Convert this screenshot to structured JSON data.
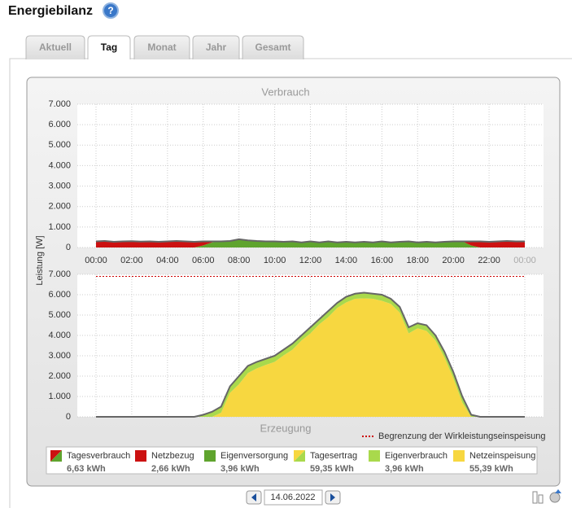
{
  "header": {
    "title": "Energiebilanz"
  },
  "tabs": [
    "Aktuell",
    "Tag",
    "Monat",
    "Jahr",
    "Gesamt"
  ],
  "active_tab": 1,
  "y_axis_label": "Leistung [W]",
  "chart_data": [
    {
      "type": "area",
      "title": "Verbrauch",
      "stacked": true,
      "grid": true,
      "x": [
        0,
        0.5,
        1,
        1.5,
        2,
        2.5,
        3,
        3.5,
        4,
        4.5,
        5,
        5.5,
        6,
        6.5,
        7,
        7.5,
        8,
        8.5,
        9,
        9.5,
        10,
        10.5,
        11,
        11.5,
        12,
        12.5,
        13,
        13.5,
        14,
        14.5,
        15,
        15.5,
        16,
        16.5,
        17,
        17.5,
        18,
        18.5,
        19,
        19.5,
        20,
        20.5,
        21,
        21.5,
        22,
        22.5,
        23,
        23.5,
        24
      ],
      "xlim": [
        0,
        24
      ],
      "xticks": [
        {
          "value": 0,
          "label": "00:00"
        },
        {
          "value": 2,
          "label": "02:00"
        },
        {
          "value": 4,
          "label": "04:00"
        },
        {
          "value": 6,
          "label": "06:00"
        },
        {
          "value": 8,
          "label": "08:00"
        },
        {
          "value": 10,
          "label": "10:00"
        },
        {
          "value": 12,
          "label": "12:00"
        },
        {
          "value": 14,
          "label": "14:00"
        },
        {
          "value": 16,
          "label": "16:00"
        },
        {
          "value": 18,
          "label": "18:00"
        },
        {
          "value": 20,
          "label": "20:00"
        },
        {
          "value": 22,
          "label": "22:00"
        },
        {
          "value": 24,
          "label": "00:00"
        }
      ],
      "ylim": [
        0,
        7000
      ],
      "yticks": [
        0,
        1000,
        2000,
        3000,
        4000,
        5000,
        6000,
        7000
      ],
      "ytick_labels": [
        "0",
        "1.000",
        "2.000",
        "3.000",
        "4.000",
        "5.000",
        "6.000",
        "7.000"
      ],
      "series": [
        {
          "color": "#5fa42e",
          "values": [
            0,
            0,
            0,
            0,
            0,
            0,
            0,
            0,
            0,
            0,
            0,
            0,
            100,
            250,
            300,
            320,
            400,
            350,
            320,
            300,
            300,
            280,
            300,
            250,
            300,
            250,
            300,
            250,
            280,
            250,
            280,
            250,
            300,
            250,
            280,
            300,
            250,
            280,
            250,
            280,
            300,
            300,
            100,
            0,
            0,
            0,
            0,
            0,
            0
          ]
        },
        {
          "color": "#cc1111",
          "values": [
            300,
            320,
            280,
            300,
            310,
            290,
            300,
            280,
            300,
            320,
            300,
            280,
            200,
            50,
            0,
            0,
            0,
            0,
            0,
            0,
            0,
            0,
            0,
            0,
            0,
            0,
            0,
            0,
            0,
            0,
            0,
            0,
            0,
            0,
            0,
            0,
            0,
            0,
            0,
            0,
            0,
            0,
            200,
            300,
            280,
            300,
            320,
            300,
            300
          ]
        }
      ]
    },
    {
      "type": "area",
      "title": "Erzeugung",
      "stacked": true,
      "grid": true,
      "ylim": [
        0,
        7000
      ],
      "limit": {
        "value": 6900,
        "label": "Begrenzung der Wirkleistungseinspeisung",
        "color": "#cc0000"
      },
      "series": [
        {
          "color": "#f7d740",
          "values": [
            0,
            0,
            0,
            0,
            0,
            0,
            0,
            0,
            0,
            0,
            0,
            0,
            0,
            0,
            200,
            1180,
            1600,
            2150,
            2380,
            2550,
            2700,
            3020,
            3300,
            3750,
            4100,
            4550,
            4900,
            5350,
            5620,
            5800,
            5820,
            5800,
            5700,
            5550,
            5120,
            4100,
            4350,
            4220,
            3750,
            2920,
            1900,
            700,
            0,
            0,
            0,
            0,
            0,
            0,
            0
          ]
        },
        {
          "color": "#a9d94c",
          "values": [
            0,
            0,
            0,
            0,
            0,
            0,
            0,
            0,
            0,
            0,
            0,
            0,
            100,
            250,
            300,
            320,
            400,
            350,
            320,
            300,
            300,
            280,
            300,
            250,
            300,
            250,
            300,
            250,
            280,
            250,
            280,
            250,
            300,
            250,
            280,
            300,
            250,
            280,
            250,
            280,
            300,
            300,
            100,
            0,
            0,
            0,
            0,
            0,
            0
          ]
        }
      ]
    }
  ],
  "legend": [
    {
      "name": "Tagesverbrauch",
      "total": "6,63 kWh",
      "colors": [
        "#cc1111",
        "#5fa42e"
      ]
    },
    {
      "name": "Netzbezug",
      "total": "2,66 kWh",
      "colors": [
        "#cc1111"
      ]
    },
    {
      "name": "Eigenversorgung",
      "total": "3,96 kWh",
      "colors": [
        "#5fa42e"
      ]
    },
    {
      "name": "Tagesertrag",
      "total": "59,35 kWh",
      "colors": [
        "#f7d740",
        "#a9d94c"
      ]
    },
    {
      "name": "Eigenverbrauch",
      "total": "3,96 kWh",
      "colors": [
        "#a9d94c"
      ]
    },
    {
      "name": "Netzeinspeisung",
      "total": "55,39 kWh",
      "colors": [
        "#f7d740"
      ]
    }
  ],
  "date": "14.06.2022"
}
